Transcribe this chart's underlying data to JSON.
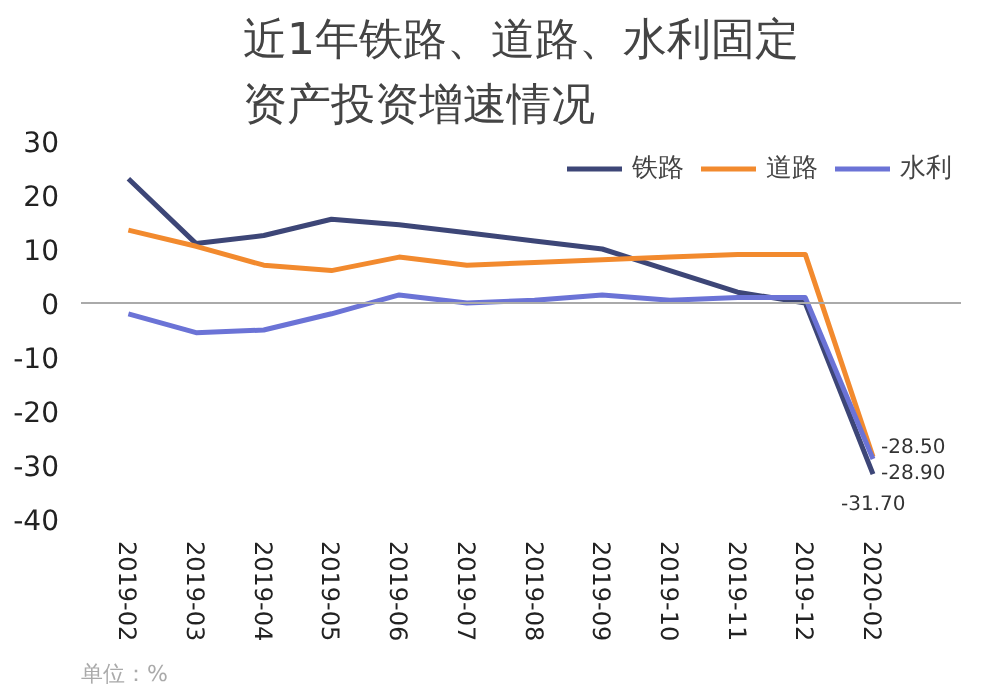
{
  "chart_data": {
    "type": "line",
    "title": "近1年铁路、道路、水利固定资产投资增速情况",
    "categories": [
      "2019-02",
      "2019-03",
      "2019-04",
      "2019-05",
      "2019-06",
      "2019-07",
      "2019-08",
      "2019-09",
      "2019-10",
      "2019-11",
      "2019-12",
      "2020-02"
    ],
    "series": [
      {
        "name": "铁路",
        "color": "#3d4677",
        "values": [
          23,
          11,
          12.5,
          15.5,
          14.5,
          13,
          11.5,
          10,
          6,
          2,
          0,
          -31.7
        ],
        "value_labels": [
          null,
          null,
          null,
          null,
          null,
          null,
          null,
          null,
          null,
          null,
          null,
          "-31.70"
        ]
      },
      {
        "name": "道路",
        "color": "#f28a2e",
        "values": [
          13.5,
          10.5,
          7,
          6,
          8.5,
          7,
          7.5,
          8,
          8.5,
          9,
          9,
          -28.5
        ],
        "value_labels": [
          null,
          null,
          null,
          null,
          null,
          null,
          null,
          null,
          null,
          null,
          null,
          "-28.50"
        ]
      },
      {
        "name": "水利",
        "color": "#6b73d6",
        "values": [
          -2,
          -5.5,
          -5,
          -2,
          1.5,
          0,
          0.5,
          1.5,
          0.5,
          1,
          1,
          -28.9
        ],
        "value_labels": [
          null,
          null,
          null,
          null,
          null,
          null,
          null,
          null,
          null,
          null,
          null,
          "-28.90"
        ]
      }
    ],
    "ylim": [
      -40,
      30
    ],
    "yticks": [
      -40,
      -30,
      -20,
      -10,
      0,
      10,
      20,
      30
    ],
    "ref_lines": [
      {
        "axis": "y",
        "value": 0,
        "color": "#aaaaaa"
      }
    ],
    "grid": false,
    "legend": "top right",
    "marker": "none",
    "line_style": "solid",
    "annotations": [
      "单位：%"
    ]
  }
}
